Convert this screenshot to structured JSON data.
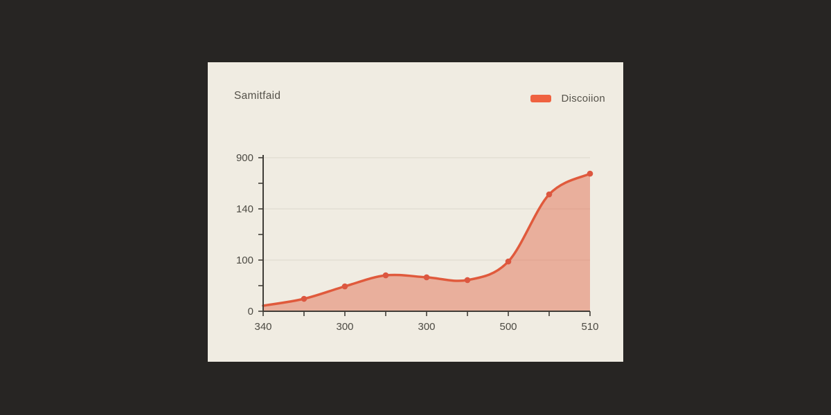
{
  "card": {
    "background": "#f0ece2",
    "page_background": "#272523"
  },
  "chart_data": {
    "type": "area",
    "title": "Samitfaid",
    "legend": [
      {
        "label": "Discoiion",
        "color": "#ef6240"
      }
    ],
    "legend_position": "top-right",
    "grid": "horizontal-only",
    "line_color": "#e05a3c",
    "marker_color": "#dc5740",
    "fill_color": "rgba(224,90,60,0.42)",
    "axis_color": "#403d37",
    "grid_color": "#dcd8cc",
    "x_tick_labels": [
      "340",
      "",
      "300",
      "",
      "300",
      "",
      "500",
      "",
      "510"
    ],
    "y_tick_labels_bottom_to_top": [
      "0",
      "",
      "100",
      "",
      "140",
      "",
      "900"
    ],
    "y_grid_rows": [
      2,
      4,
      6
    ],
    "values_est_axis_units": [
      11,
      25,
      49,
      71,
      67,
      62,
      99,
      356,
      664
    ],
    "points_norm": [
      [
        0.0,
        0.964
      ],
      [
        0.125,
        0.919
      ],
      [
        0.25,
        0.838
      ],
      [
        0.375,
        0.766
      ],
      [
        0.5,
        0.779
      ],
      [
        0.625,
        0.797
      ],
      [
        0.75,
        0.676
      ],
      [
        0.875,
        0.239
      ],
      [
        1.0,
        0.104
      ]
    ],
    "marker_from_index": 1
  }
}
